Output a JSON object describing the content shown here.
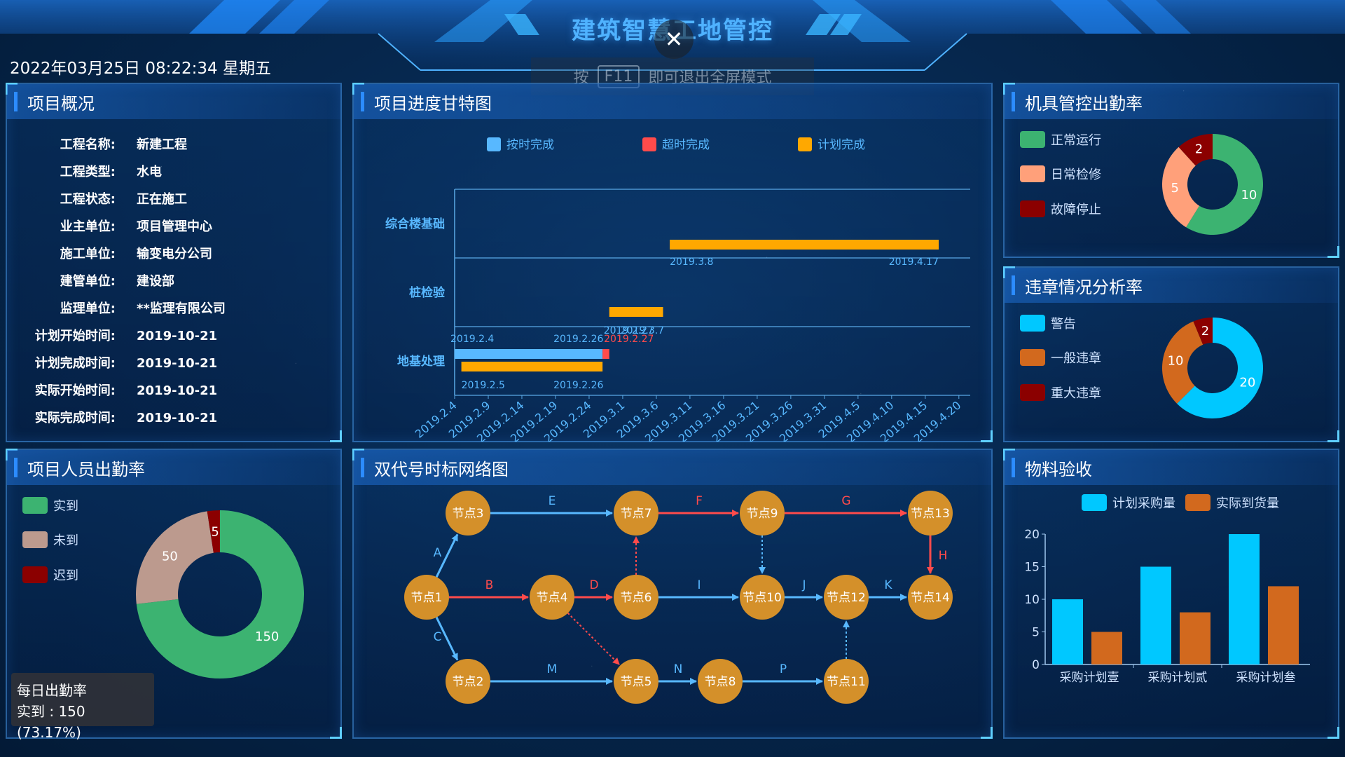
{
  "header": {
    "title": "建筑智慧工地管控",
    "close_symbol": "✕",
    "f11_tip_prefix": "按",
    "f11_key": "F11",
    "f11_tip_suffix": "即可退出全屏模式",
    "datetime": "2022年03月25日 08:22:34 星期五"
  },
  "overview": {
    "title": "项目概况",
    "rows": [
      {
        "k": "工程名称:",
        "v": "新建工程"
      },
      {
        "k": "工程类型:",
        "v": "水电"
      },
      {
        "k": "工程状态:",
        "v": "正在施工"
      },
      {
        "k": "业主单位:",
        "v": "项目管理中心"
      },
      {
        "k": "施工单位:",
        "v": "输变电分公司"
      },
      {
        "k": "建管单位:",
        "v": "建设部"
      },
      {
        "k": "监理单位:",
        "v": "**监理有限公司"
      },
      {
        "k": "计划开始时间:",
        "v": "2019-10-21"
      },
      {
        "k": "计划完成时间:",
        "v": "2019-10-21"
      },
      {
        "k": "实际开始时间:",
        "v": "2019-10-21"
      },
      {
        "k": "实际完成时间:",
        "v": "2019-10-21"
      }
    ]
  },
  "gantt": {
    "title": "项目进度甘特图",
    "legend": [
      {
        "label": "按时完成",
        "color": "#58b8ff"
      },
      {
        "label": "超时完成",
        "color": "#ff4b4b"
      },
      {
        "label": "计划完成",
        "color": "#ffa800"
      }
    ],
    "rows": [
      "综合楼基础",
      "桩检验",
      "地基处理"
    ],
    "x_ticks": [
      "2019.2.4",
      "2019.2.9",
      "2019.2.14",
      "2019.2.19",
      "2019.2.24",
      "2019.3.1",
      "2019.3.6",
      "2019.3.11",
      "2019.3.16",
      "2019.3.21",
      "2019.3.26",
      "2019.3.31",
      "2019.4.5",
      "2019.4.10",
      "2019.4.15",
      "2019.4.20"
    ],
    "bars": [
      {
        "row": 0,
        "type": "plan",
        "start": "2019.3.8",
        "end": "2019.4.17"
      },
      {
        "row": 1,
        "type": "plan",
        "start": "2019.2.27",
        "end": "2019.3.7"
      },
      {
        "row": 2,
        "type": "actual",
        "start": "2019.2.4",
        "end": "2019.2.26",
        "overrun_end": "2019.2.27"
      },
      {
        "row": 2,
        "type": "plan",
        "start": "2019.2.5",
        "end": "2019.2.26"
      }
    ],
    "labels": {
      "r0_start": "2019.3.8",
      "r0_end": "2019.4.17",
      "r1_start": "2019.2.27",
      "r1_end": "2019.3.7",
      "r2_actual_start": "2019.2.4",
      "r2_actual_end": "2019.2.26",
      "r2_overrun_end": "2019.2.27",
      "r2_plan_start": "2019.2.5",
      "r2_plan_end": "2019.2.26"
    }
  },
  "machines": {
    "title": "机具管控出勤率",
    "legend": [
      {
        "label": "正常运行",
        "color": "#3cb371"
      },
      {
        "label": "日常检修",
        "color": "#ffa07a"
      },
      {
        "label": "故障停止",
        "color": "#8b0000"
      }
    ],
    "chart_data": {
      "type": "pie",
      "donut": true,
      "labels": [
        "正常运行",
        "日常检修",
        "故障停止"
      ],
      "values": [
        10,
        5,
        2
      ]
    }
  },
  "violations": {
    "title": "违章情况分析率",
    "legend": [
      {
        "label": "警告",
        "color": "#00c8ff"
      },
      {
        "label": "一般违章",
        "color": "#d2691e"
      },
      {
        "label": "重大违章",
        "color": "#8b0000"
      }
    ],
    "chart_data": {
      "type": "pie",
      "donut": true,
      "labels": [
        "警告",
        "一般违章",
        "重大违章"
      ],
      "values": [
        20,
        10,
        2
      ]
    }
  },
  "attendance": {
    "title": "项目人员出勤率",
    "legend": [
      {
        "label": "实到",
        "color": "#3cb371"
      },
      {
        "label": "未到",
        "color": "#bc9a8e"
      },
      {
        "label": "迟到",
        "color": "#8b0000"
      }
    ],
    "chart_data": {
      "type": "pie",
      "donut": true,
      "labels": [
        "实到",
        "未到",
        "迟到"
      ],
      "values": [
        150,
        50,
        5
      ]
    },
    "tooltip_title": "每日出勤率",
    "tooltip_value": "实到 : 150 (73.17%)"
  },
  "network": {
    "title": "双代号时标网络图",
    "nodes": [
      "节点1",
      "节点2",
      "节点3",
      "节点4",
      "节点5",
      "节点6",
      "节点7",
      "节点8",
      "节点9",
      "节点10",
      "节点11",
      "节点12",
      "节点13",
      "节点14"
    ],
    "edges": [
      {
        "from": "节点1",
        "to": "节点3",
        "label": "A",
        "style": "normal"
      },
      {
        "from": "节点1",
        "to": "节点4",
        "label": "B",
        "style": "critical"
      },
      {
        "from": "节点1",
        "to": "节点2",
        "label": "C",
        "style": "normal"
      },
      {
        "from": "节点4",
        "to": "节点6",
        "label": "D",
        "style": "critical"
      },
      {
        "from": "节点3",
        "to": "节点7",
        "label": "E",
        "style": "normal"
      },
      {
        "from": "节点7",
        "to": "节点9",
        "label": "F",
        "style": "critical"
      },
      {
        "from": "节点9",
        "to": "节点13",
        "label": "G",
        "style": "critical"
      },
      {
        "from": "节点13",
        "to": "节点14",
        "label": "H",
        "style": "critical"
      },
      {
        "from": "节点6",
        "to": "节点10",
        "label": "I",
        "style": "normal"
      },
      {
        "from": "节点10",
        "to": "节点12",
        "label": "J",
        "style": "normal"
      },
      {
        "from": "节点12",
        "to": "节点14",
        "label": "K",
        "style": "normal"
      },
      {
        "from": "节点2",
        "to": "节点5",
        "label": "M",
        "style": "normal"
      },
      {
        "from": "节点5",
        "to": "节点8",
        "label": "N",
        "style": "normal"
      },
      {
        "from": "节点8",
        "to": "节点11",
        "label": "P",
        "style": "normal"
      },
      {
        "from": "节点6",
        "to": "节点7",
        "label": "",
        "style": "dummy-critical"
      },
      {
        "from": "节点4",
        "to": "节点5",
        "label": "",
        "style": "dummy-critical"
      },
      {
        "from": "节点9",
        "to": "节点10",
        "label": "",
        "style": "dummy"
      },
      {
        "from": "节点11",
        "to": "节点12",
        "label": "",
        "style": "dummy"
      }
    ]
  },
  "materials": {
    "title": "物料验收",
    "chart_data": {
      "type": "bar",
      "categories": [
        "采购计划壹",
        "采购计划贰",
        "采购计划叁"
      ],
      "series": [
        {
          "name": "计划采购量",
          "values": [
            10,
            15,
            20
          ],
          "color": "#00c8ff"
        },
        {
          "name": "实际到货量",
          "values": [
            5,
            8,
            12
          ],
          "color": "#d2691e"
        }
      ],
      "ylim": [
        0,
        20
      ],
      "yticks": [
        "0",
        "5",
        "10",
        "15",
        "20"
      ]
    }
  }
}
